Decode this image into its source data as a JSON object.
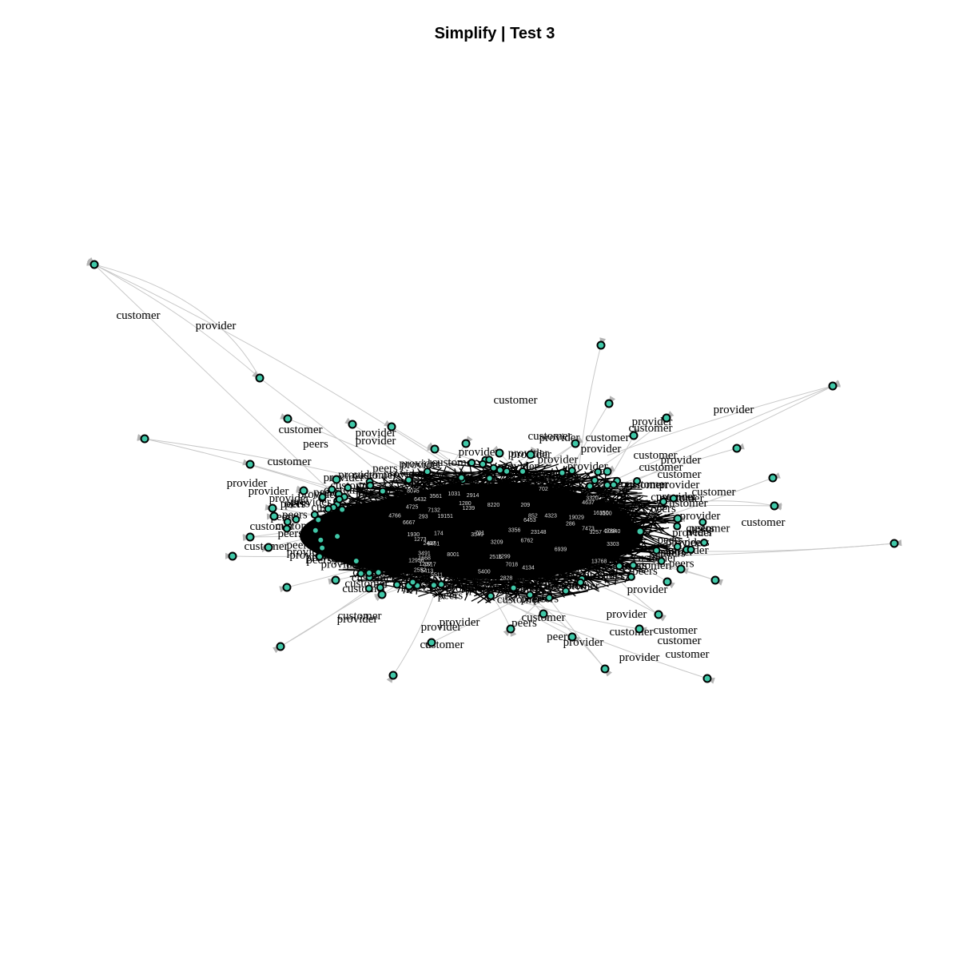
{
  "title": "Simplify | Test 3",
  "colors": {
    "node_fill": "#40c8a8",
    "node_stroke": "#000000",
    "edge": "#c8c8c8",
    "arrow": "#b0b0b0",
    "core": "#000000"
  },
  "edge_label_words": [
    "customer",
    "provider",
    "peers"
  ],
  "outer_edge_labels": [
    "customer",
    "provider",
    "customer",
    "provider",
    "provider",
    "customer",
    "provider",
    "customer",
    "customer",
    "provider",
    "customer",
    "provider",
    "customer",
    "customer",
    "provider",
    "customer",
    "customer",
    "provider",
    "customer",
    "customer",
    "customer",
    "provider",
    "provider",
    "customer",
    "customer",
    "customer",
    "provider",
    "customer",
    "provider",
    "peers",
    "peers",
    "customer",
    "provider",
    "provider",
    "customer",
    "customer",
    "provider",
    "customer",
    "provider",
    "customer",
    "provider",
    "provider",
    "customer",
    "peers",
    "provider",
    "customer",
    "provider",
    "provider"
  ],
  "core_node_labels": [
    "4725",
    "209",
    "4134",
    "4766",
    "3320",
    "5511",
    "1280",
    "852",
    "4637",
    "1930",
    "7018",
    "3561",
    "2914",
    "701",
    "3549",
    "2516",
    "7132",
    "3356",
    "2497",
    "6453",
    "6762",
    "5400",
    "1031",
    "1668",
    "293",
    "6461",
    "3491",
    "6939",
    "174",
    "3303",
    "1299",
    "3257",
    "8220",
    "286",
    "1273",
    "702",
    "16150",
    "2828",
    "4788",
    "8075",
    "20940",
    "19029",
    "8001",
    "19151",
    "1237",
    "5413",
    "3209",
    "13768",
    "3100",
    "6432",
    "23148",
    "6667",
    "2552",
    "1239",
    "7473",
    "1517",
    "4323",
    "12956"
  ]
}
